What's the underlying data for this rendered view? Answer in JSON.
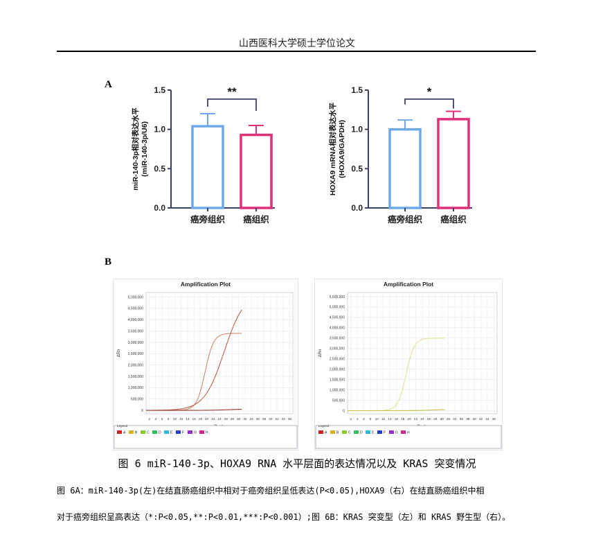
{
  "header": {
    "title": "山西医科大学硕士学位论文"
  },
  "panel_labels": {
    "a": "A",
    "b": "B"
  },
  "chart_data": [
    {
      "type": "bar",
      "ylabel_line1": "miR-140-3p相对表达水平",
      "ylabel_line2": "(miR-140-3p/U6)",
      "categories": [
        "癌旁组织",
        "癌组织"
      ],
      "values": [
        1.04,
        0.93
      ],
      "errors": [
        0.16,
        0.12
      ],
      "colors": [
        "#6fa8e8",
        "#e0307a"
      ],
      "yticks": [
        "0.0",
        "0.5",
        "1.0",
        "1.5"
      ],
      "ylim": [
        0,
        1.5
      ],
      "significance": "**"
    },
    {
      "type": "bar",
      "ylabel_line1": "HOXA9 mRNA相对表达水平",
      "ylabel_line2": "(HOXA9/GAPDH)",
      "categories": [
        "癌旁组织",
        "癌组织"
      ],
      "values": [
        1.0,
        1.13
      ],
      "errors": [
        0.12,
        0.1
      ],
      "colors": [
        "#6fa8e8",
        "#e0307a"
      ],
      "yticks": [
        "0.0",
        "0.5",
        "1.0",
        "1.5"
      ],
      "ylim": [
        0,
        1.5
      ],
      "significance": "*"
    },
    {
      "type": "line",
      "title": "Amplification Plot",
      "xlabel": "Cycle",
      "ylabel": "ΔRn",
      "xticks": [
        "2",
        "4",
        "6",
        "8",
        "10",
        "12",
        "14",
        "16",
        "18",
        "20",
        "22",
        "24",
        "26",
        "28",
        "30",
        "32",
        "34",
        "36",
        "38",
        "40",
        "42",
        "44",
        "46"
      ],
      "yticks": [
        "0",
        "500,000",
        "1,000,000",
        "1,500,000",
        "2,000,000",
        "2,500,000",
        "3,000,000",
        "3,500,000",
        "4,000,000",
        "4,500,000",
        "5,000,000"
      ],
      "xlim": [
        1,
        47
      ],
      "ylim": [
        -150000,
        5200000
      ],
      "series": [
        {
          "color": "#d08a6a",
          "plateau": 3400000,
          "midpoint": 19.5,
          "slope": 0.75
        },
        {
          "color": "#c2604a",
          "plateau": 5200000,
          "midpoint": 25.5,
          "slope": 0.32
        },
        {
          "color": "#9a3a30",
          "plateau": 60000,
          "midpoint": 27,
          "slope": 0.35
        }
      ],
      "legend": {
        "title": "Legend",
        "items": [
          {
            "label": "A",
            "color": "#d02020"
          },
          {
            "label": "B",
            "color": "#d8b020"
          },
          {
            "label": "C",
            "color": "#8cc830"
          },
          {
            "label": "D",
            "color": "#30c060"
          },
          {
            "label": "E",
            "color": "#30b8d8"
          },
          {
            "label": "F",
            "color": "#2040c8"
          },
          {
            "label": "G",
            "color": "#9030c8"
          },
          {
            "label": "H",
            "color": "#d02890"
          }
        ]
      }
    },
    {
      "type": "line",
      "title": "Amplification Plot",
      "xlabel": "Cycle",
      "ylabel": "ΔRn",
      "xticks": [
        "2",
        "4",
        "6",
        "8",
        "10",
        "12",
        "14",
        "16",
        "18",
        "20",
        "22",
        "24",
        "26",
        "28",
        "30",
        "32",
        "34",
        "36",
        "38",
        "40",
        "42",
        "44",
        "46"
      ],
      "yticks": [
        "0",
        "500,000",
        "1,000,000",
        "1,500,000",
        "2,000,000",
        "2,500,000",
        "3,000,000",
        "3,500,000",
        "4,000,000",
        "4,500,000",
        "5,000,000",
        "5,500,000"
      ],
      "xlim": [
        1,
        47
      ],
      "ylim": [
        -150000,
        5700000
      ],
      "series": [
        {
          "color": "#e6e090",
          "plateau": 3500000,
          "midpoint": 19.0,
          "slope": 0.8
        },
        {
          "color": "#c8c040",
          "plateau": 70000,
          "midpoint": 28,
          "slope": 0.35
        }
      ],
      "legend": {
        "title": "Legend",
        "items": [
          {
            "label": "A",
            "color": "#d02020"
          },
          {
            "label": "B",
            "color": "#d8b020"
          },
          {
            "label": "C",
            "color": "#8cc830"
          },
          {
            "label": "D",
            "color": "#30c060"
          },
          {
            "label": "E",
            "color": "#30b8d8"
          },
          {
            "label": "F",
            "color": "#2040c8"
          },
          {
            "label": "G",
            "color": "#9030c8"
          },
          {
            "label": "H",
            "color": "#d02890"
          }
        ]
      }
    }
  ],
  "caption": {
    "title": "图 6 miR-140-3p、HOXA9 RNA 水平层面的表达情况以及 KRAS 突变情况",
    "line1": "图 6A：miR-140-3p(左)在结直肠癌组织中相对于癌旁组织呈低表达(P<0.05),HOXA9（右）在结直肠癌组织中相",
    "line2": "对于癌旁组织呈高表达（*:P<0.05,**:P<0.01,***:P<0.001）;图 6B：KRAS 突变型（左）和 KRAS 野生型（右）。"
  }
}
